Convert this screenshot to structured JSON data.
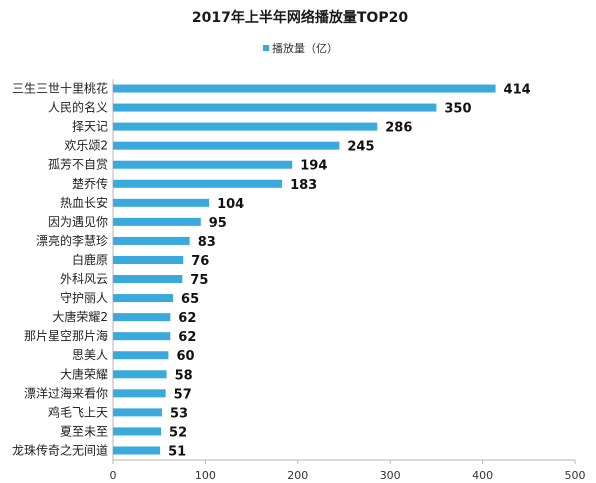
{
  "chart_data": {
    "type": "bar",
    "orientation": "horizontal",
    "title": "2017年上半年网络播放量TOP20",
    "legend": {
      "label": "播放量（亿）",
      "placement": "top-center"
    },
    "series": [
      {
        "name": "播放量（亿）",
        "color": "#3aa9dc"
      }
    ],
    "categories": [
      "三生三世十里桃花",
      "人民的名义",
      "择天记",
      "欢乐颂2",
      "孤芳不自赏",
      "楚乔传",
      "热血长安",
      "因为遇见你",
      "漂亮的李慧珍",
      "白鹿原",
      "外科风云",
      "守护丽人",
      "大唐荣耀2",
      "那片星空那片海",
      "思美人",
      "大唐荣耀",
      "漂洋过海来看你",
      "鸡毛飞上天",
      "夏至未至",
      "龙珠传奇之无间道"
    ],
    "values": [
      414,
      350,
      286,
      245,
      194,
      183,
      104,
      95,
      83,
      76,
      75,
      65,
      62,
      62,
      60,
      58,
      57,
      53,
      52,
      51
    ],
    "xlim": [
      0,
      500
    ],
    "xticks": [
      "0",
      "100",
      "200",
      "300",
      "400",
      "500"
    ],
    "grid": false,
    "bar_color": "#3aa9dc"
  }
}
